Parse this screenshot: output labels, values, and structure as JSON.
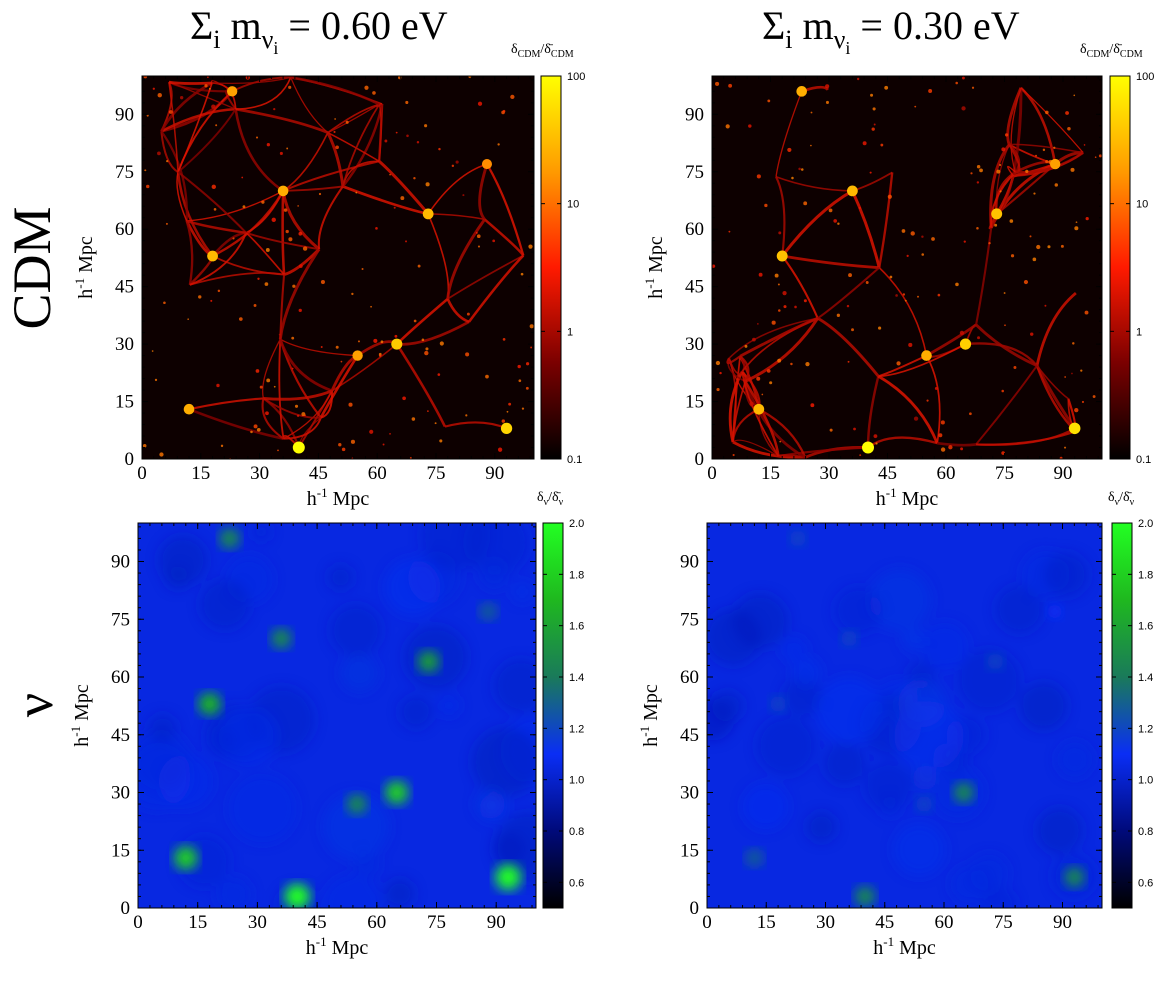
{
  "titles": [
    {
      "prefix": "Σ",
      "sub": "i",
      "mid": " m",
      "nu": "ν",
      "nusub": "i",
      "suffix": " = 0.60 eV"
    },
    {
      "prefix": "Σ",
      "sub": "i",
      "mid": " m",
      "nu": "ν",
      "nusub": "i",
      "suffix": " = 0.30 eV"
    }
  ],
  "row_labels": [
    "CDM",
    "ν"
  ],
  "colorbar_labels": {
    "cdm": {
      "d1": "δ",
      "s1": "CDM",
      "slash": "/",
      "d2": "δ̄",
      "s2": "CDM"
    },
    "nu": {
      "d1": "δ",
      "s1": "ν",
      "slash": "/",
      "d2": "δ̄",
      "s2": "ν"
    }
  },
  "axis_label_text": "h-1 Mpc",
  "axis_label_parts": {
    "h": "h",
    "sup": "-1",
    "rest": " Mpc"
  },
  "chart_data": [
    {
      "type": "heatmap",
      "panel": "cdm-0.60",
      "quantity": "CDM density contrast",
      "xlim": [
        0,
        100
      ],
      "ylim": [
        0,
        100
      ],
      "xticks": [
        0,
        15,
        30,
        45,
        60,
        75,
        90
      ],
      "yticks": [
        0,
        15,
        30,
        45,
        60,
        75,
        90
      ],
      "xlabel": "h-1 Mpc",
      "ylabel": "h-1 Mpc",
      "colorbar": {
        "scale": "log",
        "range": [
          0.1,
          100
        ],
        "ticks": [
          0.1,
          1,
          10,
          100
        ],
        "tick_labels": [
          "0.1",
          "1",
          "10",
          "100"
        ],
        "colormap": [
          "#000000",
          "#7a0000",
          "#ff1a00",
          "#ff9a00",
          "#ffff00"
        ]
      },
      "features": [
        {
          "x": 40,
          "y": 3,
          "level": 100
        },
        {
          "x": 93,
          "y": 8,
          "level": 50
        },
        {
          "x": 65,
          "y": 30,
          "level": 40
        },
        {
          "x": 18,
          "y": 53,
          "level": 30
        },
        {
          "x": 73,
          "y": 64,
          "level": 30
        },
        {
          "x": 36,
          "y": 70,
          "level": 25
        },
        {
          "x": 12,
          "y": 13,
          "level": 25
        },
        {
          "x": 55,
          "y": 27,
          "level": 20
        },
        {
          "x": 23,
          "y": 96,
          "level": 20
        },
        {
          "x": 88,
          "y": 77,
          "level": 15
        }
      ]
    },
    {
      "type": "heatmap",
      "panel": "cdm-0.30",
      "quantity": "CDM density contrast",
      "xlim": [
        0,
        100
      ],
      "ylim": [
        0,
        100
      ],
      "xticks": [
        0,
        15,
        30,
        45,
        60,
        75,
        90
      ],
      "yticks": [
        0,
        15,
        30,
        45,
        60,
        75,
        90
      ],
      "xlabel": "h-1 Mpc",
      "ylabel": "h-1 Mpc",
      "colorbar": {
        "scale": "log",
        "range": [
          0.1,
          100
        ],
        "ticks": [
          0.1,
          1,
          10,
          100
        ],
        "tick_labels": [
          "0.1",
          "1",
          "10",
          "100"
        ],
        "colormap": [
          "#000000",
          "#7a0000",
          "#ff1a00",
          "#ff9a00",
          "#ffff00"
        ]
      },
      "features": [
        {
          "x": 40,
          "y": 3,
          "level": 100
        },
        {
          "x": 93,
          "y": 8,
          "level": 60
        },
        {
          "x": 65,
          "y": 30,
          "level": 45
        },
        {
          "x": 18,
          "y": 53,
          "level": 35
        },
        {
          "x": 73,
          "y": 64,
          "level": 35
        },
        {
          "x": 36,
          "y": 70,
          "level": 30
        },
        {
          "x": 12,
          "y": 13,
          "level": 30
        },
        {
          "x": 55,
          "y": 27,
          "level": 25
        },
        {
          "x": 23,
          "y": 96,
          "level": 25
        },
        {
          "x": 88,
          "y": 77,
          "level": 20
        }
      ]
    },
    {
      "type": "heatmap",
      "panel": "nu-0.60",
      "quantity": "neutrino density contrast",
      "xlim": [
        0,
        100
      ],
      "ylim": [
        0,
        100
      ],
      "xticks": [
        0,
        15,
        30,
        45,
        60,
        75,
        90
      ],
      "yticks": [
        0,
        15,
        30,
        45,
        60,
        75,
        90
      ],
      "xlabel": "h-1 Mpc",
      "ylabel": "h-1 Mpc",
      "colorbar": {
        "scale": "linear",
        "range": [
          0.5,
          2.0
        ],
        "ticks": [
          0.6,
          0.8,
          1.0,
          1.2,
          1.4,
          1.6,
          1.8,
          2.0
        ],
        "tick_labels": [
          "0.6",
          "0.8",
          "1.0",
          "1.2",
          "1.4",
          "1.6",
          "1.8",
          "2.0"
        ],
        "colormap": [
          "#000000",
          "#000a7a",
          "#0a2ef5",
          "#1a7a5a",
          "#1fb81f",
          "#22ff22"
        ]
      },
      "features": [
        {
          "x": 93,
          "y": 8,
          "level": 2.0
        },
        {
          "x": 40,
          "y": 3,
          "level": 2.0
        },
        {
          "x": 65,
          "y": 30,
          "level": 1.8
        },
        {
          "x": 12,
          "y": 13,
          "level": 1.8
        },
        {
          "x": 18,
          "y": 53,
          "level": 1.7
        },
        {
          "x": 73,
          "y": 64,
          "level": 1.6
        },
        {
          "x": 36,
          "y": 70,
          "level": 1.5
        },
        {
          "x": 55,
          "y": 27,
          "level": 1.5
        },
        {
          "x": 23,
          "y": 96,
          "level": 1.5
        },
        {
          "x": 88,
          "y": 77,
          "level": 1.3
        }
      ]
    },
    {
      "type": "heatmap",
      "panel": "nu-0.30",
      "quantity": "neutrino density contrast",
      "xlim": [
        0,
        100
      ],
      "ylim": [
        0,
        100
      ],
      "xticks": [
        0,
        15,
        30,
        45,
        60,
        75,
        90
      ],
      "yticks": [
        0,
        15,
        30,
        45,
        60,
        75,
        90
      ],
      "xlabel": "h-1 Mpc",
      "ylabel": "h-1 Mpc",
      "colorbar": {
        "scale": "linear",
        "range": [
          0.5,
          2.0
        ],
        "ticks": [
          0.6,
          0.8,
          1.0,
          1.2,
          1.4,
          1.6,
          1.8,
          2.0
        ],
        "tick_labels": [
          "0.6",
          "0.8",
          "1.0",
          "1.2",
          "1.4",
          "1.6",
          "1.8",
          "2.0"
        ],
        "colormap": [
          "#000000",
          "#000a7a",
          "#0a2ef5",
          "#1a7a5a",
          "#1fb81f",
          "#22ff22"
        ]
      },
      "features": [
        {
          "x": 93,
          "y": 8,
          "level": 1.5
        },
        {
          "x": 40,
          "y": 3,
          "level": 1.5
        },
        {
          "x": 65,
          "y": 30,
          "level": 1.5
        },
        {
          "x": 12,
          "y": 13,
          "level": 1.3
        },
        {
          "x": 18,
          "y": 53,
          "level": 1.2
        },
        {
          "x": 73,
          "y": 64,
          "level": 1.2
        },
        {
          "x": 36,
          "y": 70,
          "level": 1.2
        },
        {
          "x": 55,
          "y": 27,
          "level": 1.2
        },
        {
          "x": 23,
          "y": 96,
          "level": 1.2
        },
        {
          "x": 88,
          "y": 77,
          "level": 1.1
        }
      ]
    }
  ]
}
